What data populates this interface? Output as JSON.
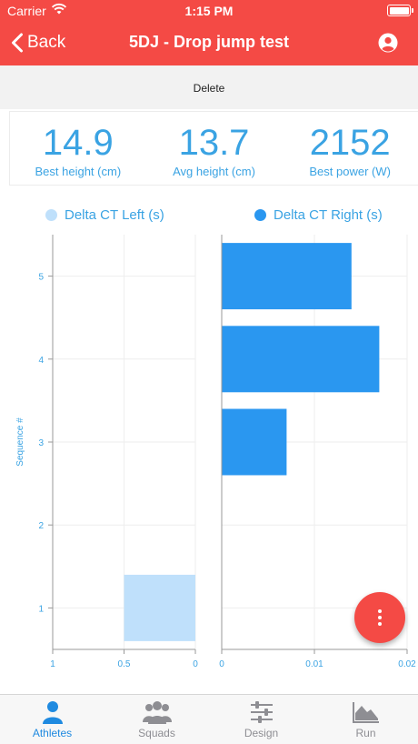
{
  "status_bar": {
    "carrier": "Carrier",
    "time": "1:15 PM"
  },
  "header": {
    "back_label": "Back",
    "title": "5DJ - Drop jump test",
    "icon": "user-circle-icon"
  },
  "actions": {
    "delete_label": "Delete"
  },
  "stats": [
    {
      "value": "14.9",
      "label": "Best height (cm)"
    },
    {
      "value": "13.7",
      "label": "Avg height (cm)"
    },
    {
      "value": "2152",
      "label": "Best power (W)"
    }
  ],
  "colors": {
    "accent": "#f44a45",
    "primary": "#3aa3e3",
    "bar_right": "#2a97f0",
    "bar_left": "#bfe0fb",
    "tab_active": "#1f8ae0"
  },
  "chart_data": {
    "type": "bar",
    "orientation": "horizontal",
    "categories": [
      1,
      2,
      3,
      4,
      5
    ],
    "ylabel": "Sequence #",
    "series": [
      {
        "name": "Delta CT Left (s)",
        "values": [
          0.5,
          0,
          0,
          0,
          0
        ],
        "xlim": [
          1,
          0
        ],
        "x_ticks": [
          "1",
          "0.5",
          "0"
        ]
      },
      {
        "name": "Delta CT Right (s)",
        "values": [
          0,
          0,
          0.007,
          0.017,
          0.014
        ],
        "xlim": [
          0,
          0.02
        ],
        "x_ticks": [
          "0",
          "0.01",
          "0.02"
        ]
      }
    ],
    "y_ticks": [
      "1",
      "2",
      "3",
      "4",
      "5"
    ],
    "grid": true,
    "legend": "top"
  },
  "fab": {
    "icon": "more-vertical-icon"
  },
  "tabs": [
    {
      "label": "Athletes",
      "icon": "athlete-icon",
      "active": true
    },
    {
      "label": "Squads",
      "icon": "squads-icon",
      "active": false
    },
    {
      "label": "Design",
      "icon": "sliders-icon",
      "active": false
    },
    {
      "label": "Run",
      "icon": "area-chart-icon",
      "active": false
    }
  ]
}
